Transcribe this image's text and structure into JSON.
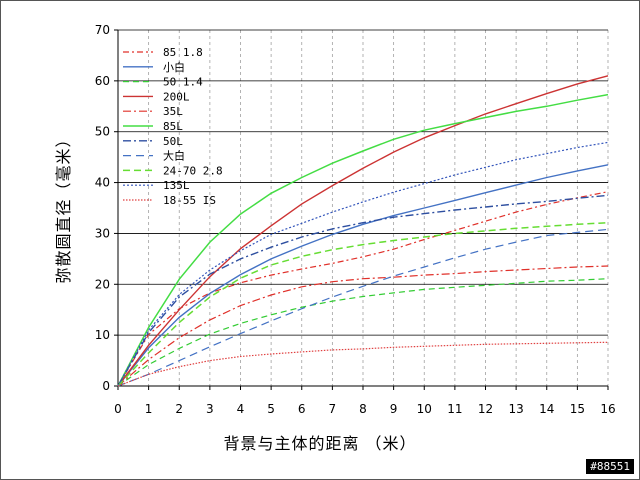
{
  "chart_data": {
    "type": "line",
    "title": "",
    "xlabel": "背景与主体的距离 （米）",
    "ylabel": "弥散圆直径（毫米）",
    "xlim": [
      0,
      16
    ],
    "ylim": [
      0,
      70
    ],
    "x_ticks": [
      0,
      1,
      2,
      3,
      4,
      5,
      6,
      7,
      8,
      9,
      10,
      11,
      12,
      13,
      14,
      15,
      16
    ],
    "y_ticks": [
      0,
      10,
      20,
      30,
      40,
      50,
      60,
      70
    ],
    "grid": {
      "horizontal": true,
      "vertical_dashed": true
    },
    "legend_position": "top-left",
    "x": [
      0,
      1,
      2,
      3,
      4,
      5,
      6,
      7,
      8,
      9,
      10,
      11,
      12,
      13,
      14,
      15,
      16
    ],
    "series": [
      {
        "name": "85 1.8",
        "color": "#e0302a",
        "dash": "6,3,2,3",
        "width": 1.2,
        "values": [
          0,
          10.1,
          15.2,
          18.3,
          20.3,
          21.8,
          23.0,
          24.1,
          25.4,
          26.9,
          28.8,
          30.6,
          32.4,
          34.2,
          35.7,
          37.0,
          38.2
        ]
      },
      {
        "name": "小白",
        "color": "#4472c4",
        "dash": "",
        "width": 1.4,
        "values": [
          0,
          7.5,
          13.5,
          18.2,
          21.9,
          25.0,
          27.5,
          29.8,
          31.8,
          33.5,
          35.0,
          36.5,
          38.0,
          39.5,
          41.0,
          42.3,
          43.5
        ]
      },
      {
        "name": "50 1.4",
        "color": "#33cc33",
        "dash": "6,4",
        "width": 1.2,
        "values": [
          0,
          4.2,
          7.4,
          10.2,
          12.3,
          14.0,
          15.5,
          16.7,
          17.6,
          18.3,
          19.0,
          19.4,
          19.8,
          20.2,
          20.6,
          20.8,
          21.1
        ]
      },
      {
        "name": "200L",
        "color": "#cc3333",
        "dash": "",
        "width": 1.4,
        "values": [
          0,
          8.0,
          15.0,
          21.5,
          27.0,
          31.5,
          35.8,
          39.4,
          42.8,
          46.0,
          48.8,
          51.2,
          53.5,
          55.5,
          57.5,
          59.4,
          61.0
        ]
      },
      {
        "name": "35L",
        "color": "#e0302a",
        "dash": "8,3,2,3",
        "width": 1.2,
        "values": [
          0,
          5.2,
          9.5,
          13.0,
          15.8,
          17.9,
          19.5,
          20.5,
          21.1,
          21.4,
          21.8,
          22.1,
          22.5,
          22.8,
          23.1,
          23.4,
          23.6
        ]
      },
      {
        "name": "85L",
        "color": "#44dd44",
        "dash": "",
        "width": 1.5,
        "values": [
          0,
          11.5,
          21.0,
          28.3,
          33.8,
          37.9,
          41.0,
          43.8,
          46.2,
          48.5,
          50.3,
          51.6,
          52.8,
          54.0,
          55.0,
          56.2,
          57.3
        ]
      },
      {
        "name": "50L",
        "color": "#2e4fa0",
        "dash": "8,3,2,3",
        "width": 1.4,
        "values": [
          0,
          10.5,
          17.5,
          22.0,
          25.0,
          27.3,
          29.3,
          30.9,
          32.1,
          33.2,
          33.9,
          34.6,
          35.2,
          35.8,
          36.3,
          36.9,
          37.5
        ]
      },
      {
        "name": "大白",
        "color": "#4472c4",
        "dash": "8,5",
        "width": 1.2,
        "values": [
          0,
          2.3,
          5.0,
          7.7,
          10.3,
          12.8,
          15.2,
          17.5,
          19.6,
          21.6,
          23.4,
          25.2,
          26.9,
          28.3,
          29.6,
          30.2,
          30.8
        ]
      },
      {
        "name": "24-70 2.8",
        "color": "#66dd33",
        "dash": "7,4",
        "width": 1.5,
        "values": [
          0,
          6.5,
          12.5,
          17.5,
          21.2,
          23.8,
          25.5,
          26.8,
          27.8,
          28.6,
          29.3,
          30.0,
          30.5,
          31.0,
          31.4,
          31.8,
          32.1
        ]
      },
      {
        "name": "135L",
        "color": "#3355bb",
        "dash": "2,2",
        "width": 1.2,
        "values": [
          0,
          11.0,
          18.0,
          22.8,
          26.6,
          29.8,
          32.0,
          34.2,
          36.2,
          38.1,
          39.8,
          41.5,
          43.0,
          44.5,
          45.7,
          46.9,
          47.9
        ]
      },
      {
        "name": "18-55 IS",
        "color": "#e04040",
        "dash": "1.5,1.5",
        "width": 1.2,
        "values": [
          0,
          2.3,
          3.8,
          5.0,
          5.8,
          6.3,
          6.7,
          7.1,
          7.3,
          7.6,
          7.8,
          8.0,
          8.2,
          8.3,
          8.4,
          8.5,
          8.6
        ]
      }
    ]
  },
  "watermark": "#88551"
}
